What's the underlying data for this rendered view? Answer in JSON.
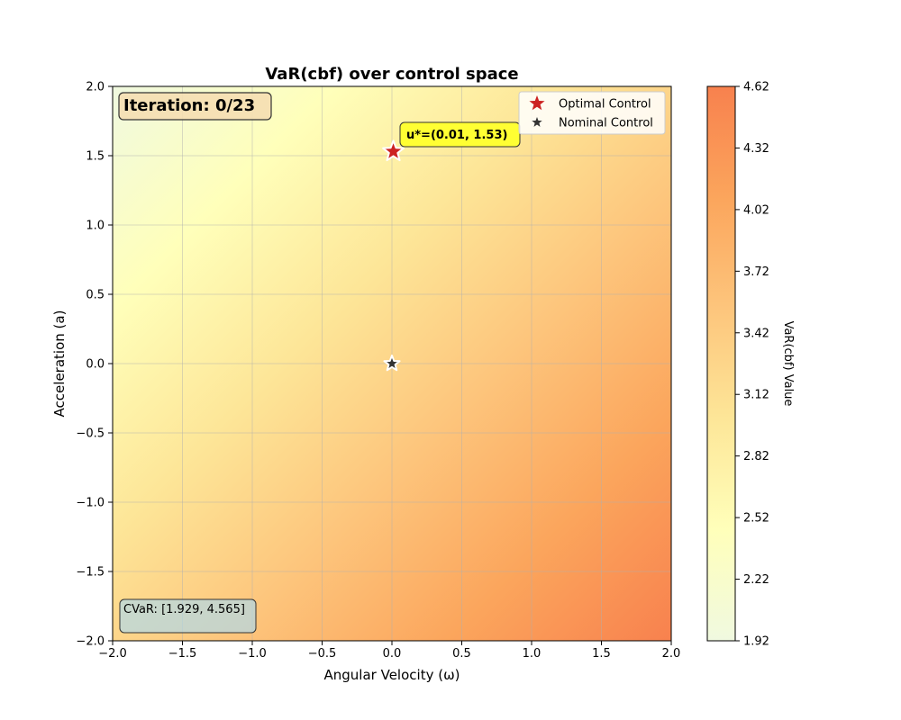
{
  "chart_data": {
    "type": "heatmap",
    "title": "VaR(cbf) over control space",
    "xlabel": "Angular Velocity (ω)",
    "ylabel": "Acceleration (a)",
    "xlim": [
      -2.0,
      2.0
    ],
    "ylim": [
      -2.0,
      2.0
    ],
    "xticks": [
      "−2.0",
      "−1.5",
      "−1.0",
      "−0.5",
      "0.0",
      "0.5",
      "1.0",
      "1.5",
      "2.0"
    ],
    "yticks": [
      "−2.0",
      "−1.5",
      "−1.0",
      "−0.5",
      "0.0",
      "0.5",
      "1.0",
      "1.5",
      "2.0"
    ],
    "grid": true,
    "surface": {
      "min_value": 1.92,
      "max_value": 4.62,
      "min_at": [
        -2.0,
        2.0
      ],
      "max_at": [
        2.0,
        -2.0
      ]
    },
    "colorbar": {
      "label": "VaR(cbf) Value",
      "min": 1.92,
      "max": 4.62,
      "ticks": [
        "1.92",
        "2.22",
        "2.52",
        "2.82",
        "3.12",
        "3.42",
        "3.72",
        "4.02",
        "4.32",
        "4.62"
      ],
      "colors": [
        "#f0f9e0",
        "#ffffba",
        "#fde698",
        "#fdc57c",
        "#fba55c",
        "#f8814e"
      ]
    },
    "markers": [
      {
        "name": "Optimal Control",
        "x": 0.01,
        "y": 1.53,
        "color": "#cc2222"
      },
      {
        "name": "Nominal Control",
        "x": 0.0,
        "y": 0.0,
        "color": "#333333"
      }
    ],
    "legend": {
      "placement": "top-right",
      "entries": [
        "Optimal Control",
        "Nominal Control"
      ]
    },
    "annotations": {
      "iteration": "Iteration: 0/23",
      "optimal_label": "u*=(0.01, 1.53)",
      "cvar": "CVaR: [1.929, 4.565]"
    }
  }
}
